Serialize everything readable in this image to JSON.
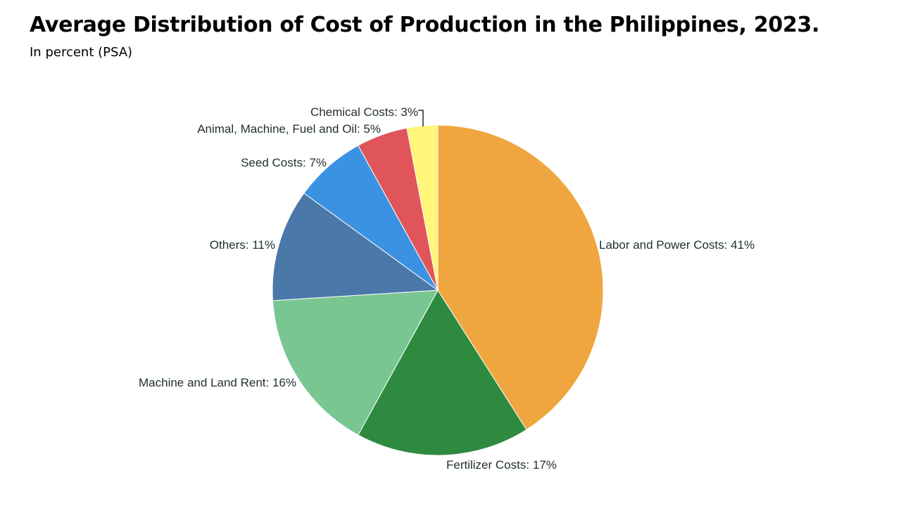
{
  "header": {
    "title": "Average Distribution of Cost of Production in the Philippines, 2023.",
    "subtitle": "In percent (PSA)"
  },
  "chart_data": {
    "type": "pie",
    "title": "Average Distribution of Cost of Production in the Philippines, 2023.",
    "subtitle": "In percent (PSA)",
    "unit": "%",
    "start": "12 o'clock",
    "direction": "clockwise",
    "slices": [
      {
        "label": "Labor and Power Costs",
        "value": 41,
        "color": "#f0a63e",
        "text": "Labor and Power Costs: 41%"
      },
      {
        "label": "Fertilizer Costs",
        "value": 17,
        "color": "#2d8a3f",
        "text": "Fertilizer Costs: 17%"
      },
      {
        "label": "Machine and Land Rent",
        "value": 16,
        "color": "#79c693",
        "text": "Machine and Land Rent: 16%"
      },
      {
        "label": "Others",
        "value": 11,
        "color": "#4a78a8",
        "text": "Others: 11%"
      },
      {
        "label": "Seed Costs",
        "value": 7,
        "color": "#3b92e2",
        "text": "Seed Costs: 7%"
      },
      {
        "label": "Animal, Machine, Fuel and Oil",
        "value": 5,
        "color": "#e0555a",
        "text": "Animal, Machine, Fuel and Oil: 5%"
      },
      {
        "label": "Chemical Costs",
        "value": 3,
        "color": "#fff67a",
        "text": "Chemical Costs: 3%"
      }
    ]
  }
}
